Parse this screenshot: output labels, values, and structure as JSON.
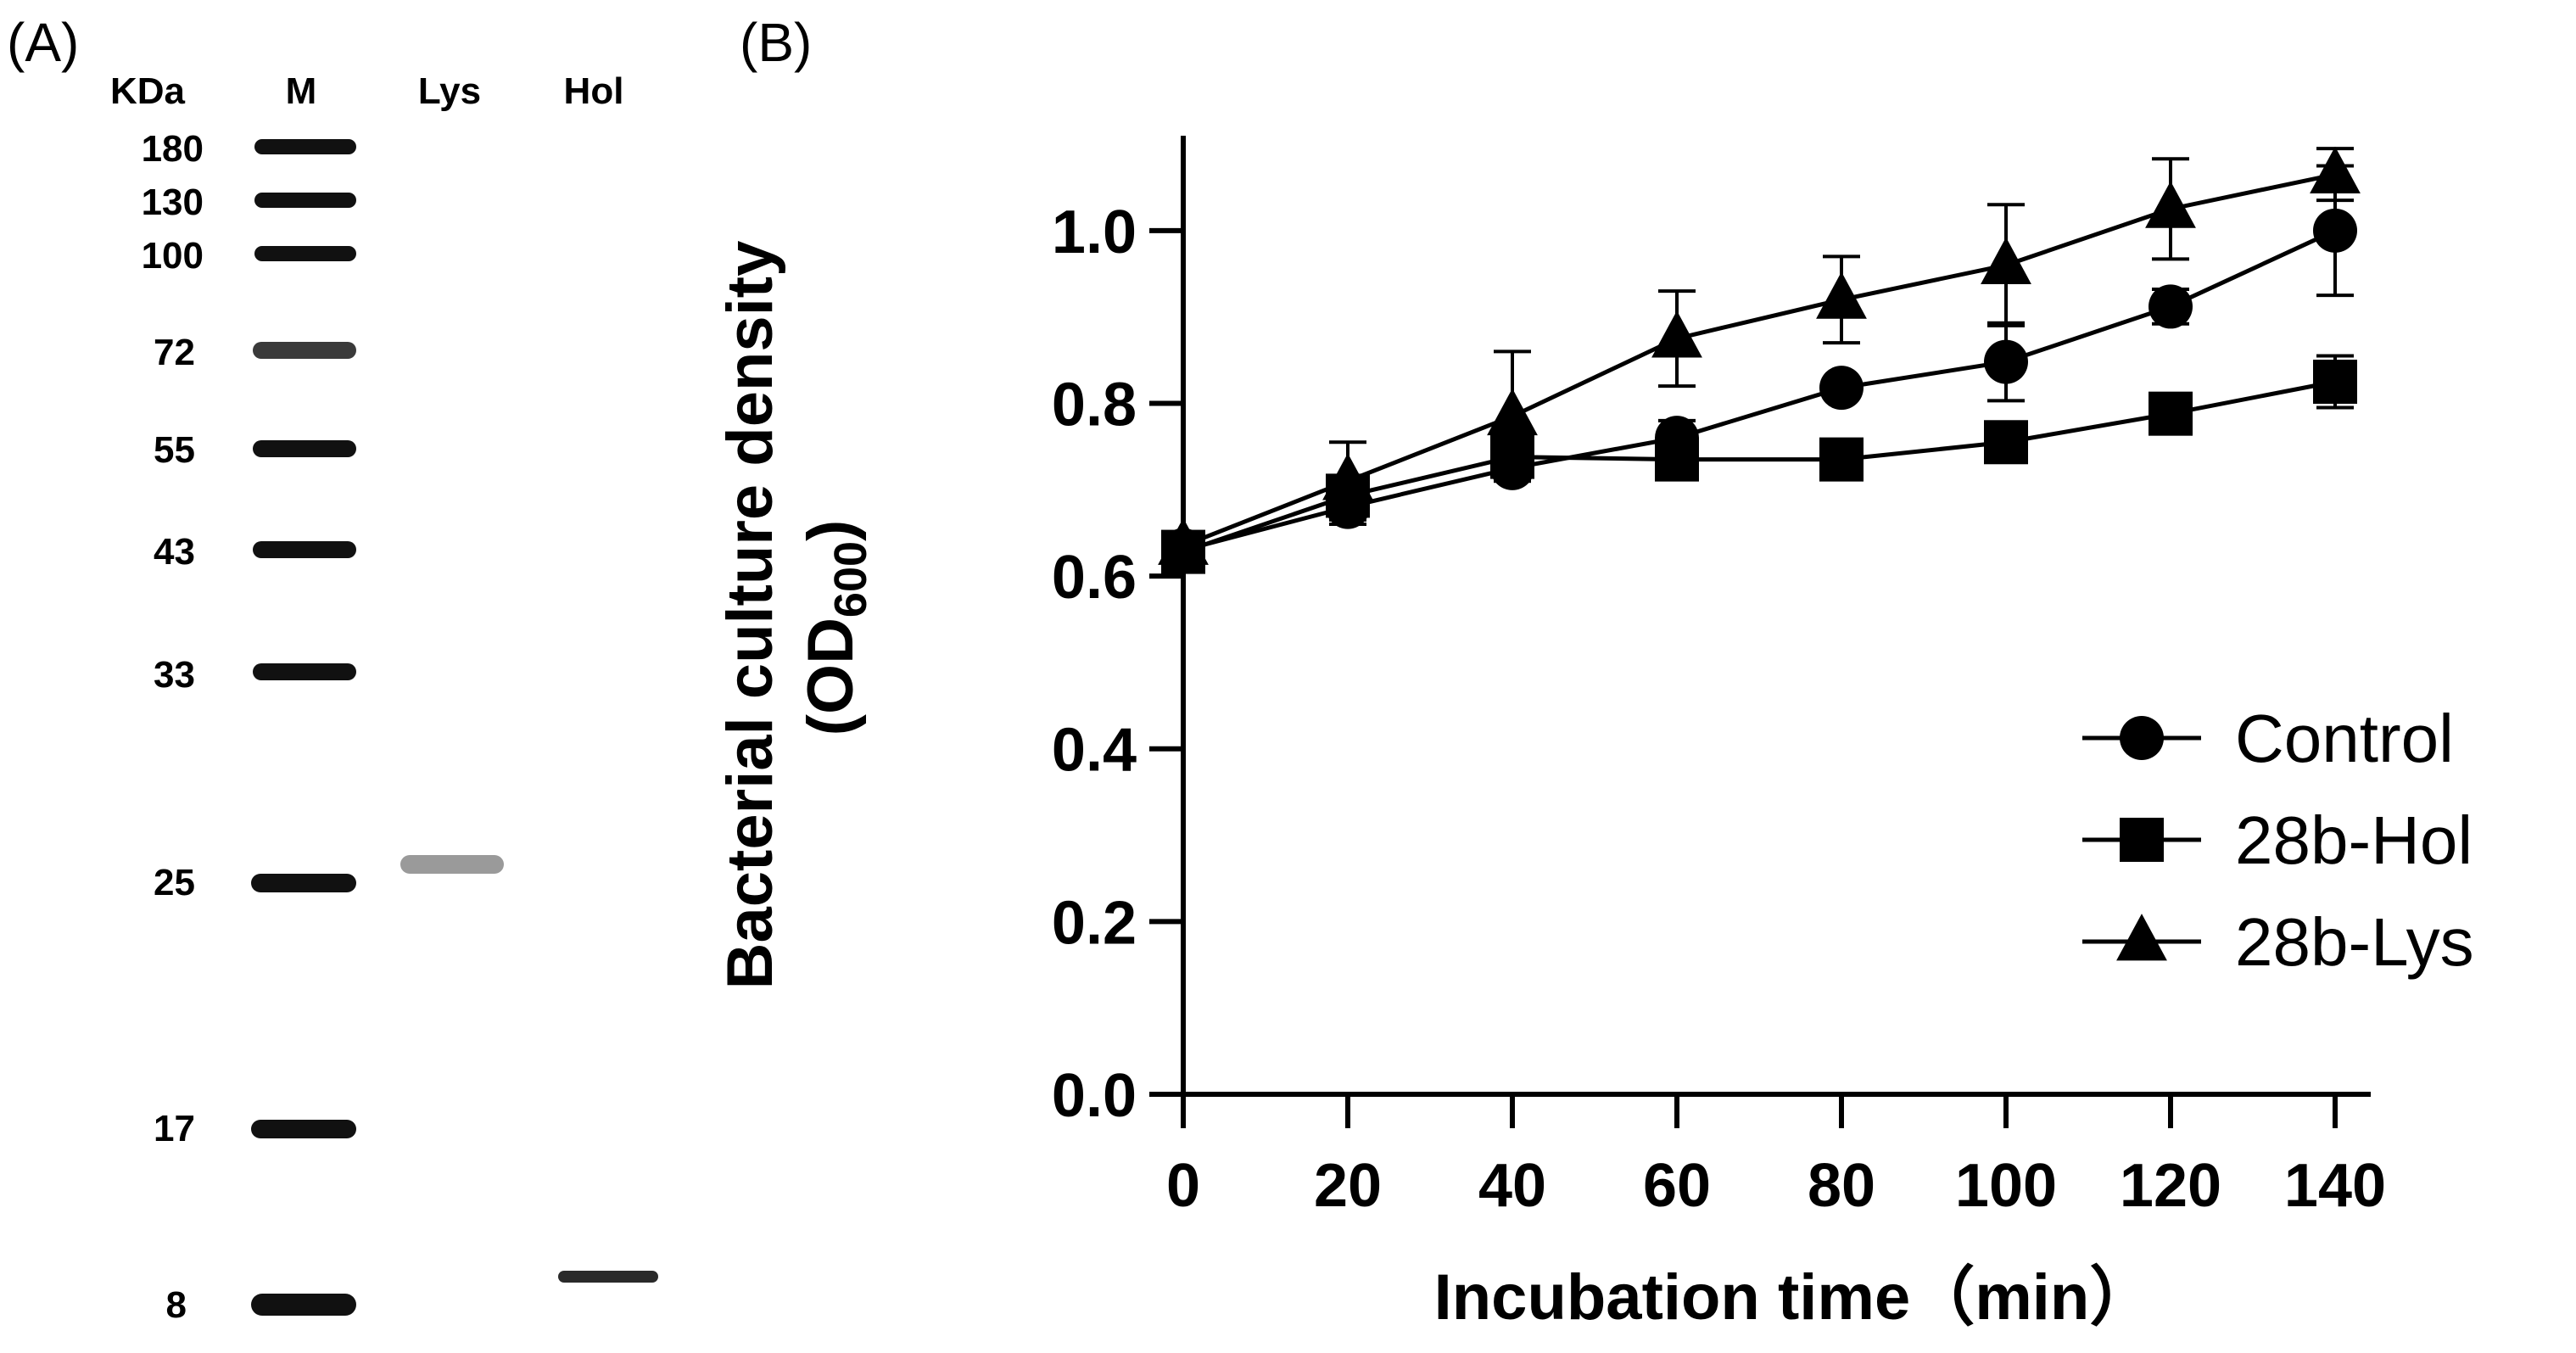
{
  "panels": {
    "a_label": "(A)",
    "b_label": "(B)"
  },
  "gel": {
    "unit_label": "KDa",
    "lane_labels": [
      "M",
      "Lys",
      "Hol"
    ],
    "marker_sizes": [
      "180",
      "130",
      "100",
      "72",
      "55",
      "43",
      "33",
      "25",
      "17",
      "8"
    ],
    "band_color": "#111111",
    "sample_bands": [
      {
        "lane": "Lys",
        "size_kda": 26
      },
      {
        "lane": "Hol",
        "size_kda": 8.5
      }
    ]
  },
  "chart_data": {
    "type": "line",
    "title": "",
    "xlabel": "Incubation time（min）",
    "ylabel_main": "Bacterial culture density",
    "ylabel_sub": "(OD",
    "ylabel_subscript": "600",
    "ylabel_close": ")",
    "x": [
      0,
      20,
      40,
      60,
      80,
      100,
      120,
      140
    ],
    "xlim": [
      0,
      140
    ],
    "ylim": [
      0,
      1.1
    ],
    "xticks": [
      "0",
      "20",
      "40",
      "60",
      "80",
      "100",
      "120",
      "140"
    ],
    "yticks": [
      "0.0",
      "0.2",
      "0.4",
      "0.6",
      "0.8",
      "1.0"
    ],
    "grid": false,
    "legend_position": "right",
    "series": [
      {
        "name": "Control",
        "marker": "circle",
        "values": [
          0.63,
          0.68,
          0.725,
          0.76,
          0.818,
          0.848,
          0.912,
          1.0
        ],
        "errors": [
          0.01,
          0.02,
          0.015,
          0.02,
          0.01,
          0.045,
          0.02,
          0.075
        ]
      },
      {
        "name": "28b-Hol",
        "marker": "square",
        "values": [
          0.628,
          0.693,
          0.738,
          0.735,
          0.735,
          0.755,
          0.788,
          0.825
        ],
        "errors": [
          0.01,
          0.015,
          0.015,
          0.01,
          0.01,
          0.012,
          0.012,
          0.03
        ]
      },
      {
        "name": "28b-Lys",
        "marker": "triangle",
        "values": [
          0.635,
          0.71,
          0.785,
          0.875,
          0.92,
          0.96,
          1.025,
          1.065
        ],
        "errors": [
          0.01,
          0.045,
          0.075,
          0.055,
          0.05,
          0.07,
          0.058,
          0.03
        ]
      }
    ]
  }
}
